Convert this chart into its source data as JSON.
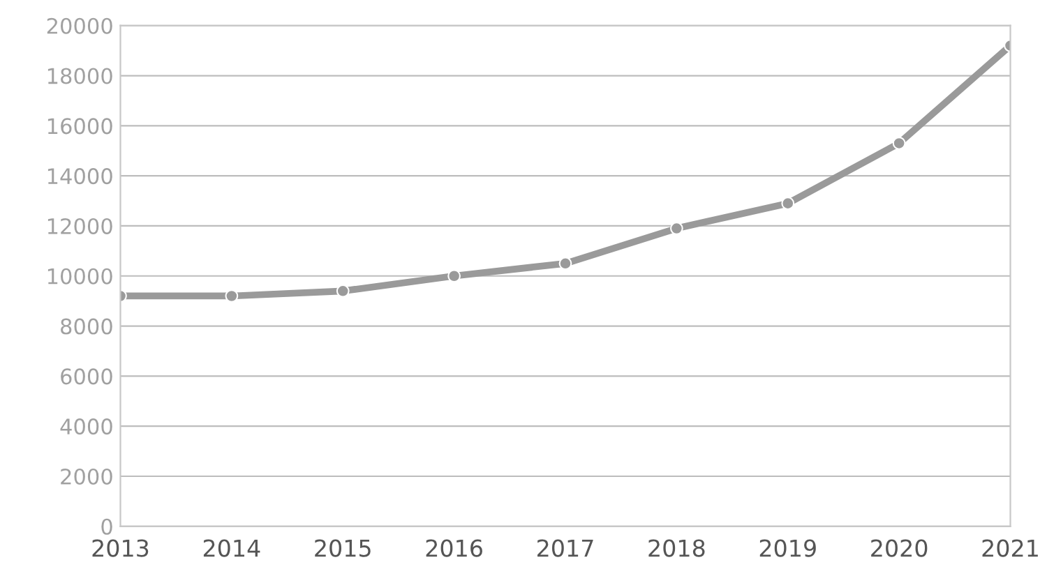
{
  "chart_data": {
    "type": "line",
    "categories": [
      "2013",
      "2014",
      "2015",
      "2016",
      "2017",
      "2018",
      "2019",
      "2020",
      "2021"
    ],
    "series": [
      {
        "color": "#9a9a9a",
        "values": [
          9200,
          9200,
          9400,
          10000,
          10500,
          11900,
          12900,
          15300,
          19200
        ]
      }
    ],
    "ylim": [
      0,
      20000
    ],
    "yticks": [
      0,
      2000,
      4000,
      6000,
      8000,
      10000,
      12000,
      14000,
      16000,
      18000,
      20000
    ],
    "grid": "y",
    "marker": "circle",
    "line_style": "solid"
  }
}
